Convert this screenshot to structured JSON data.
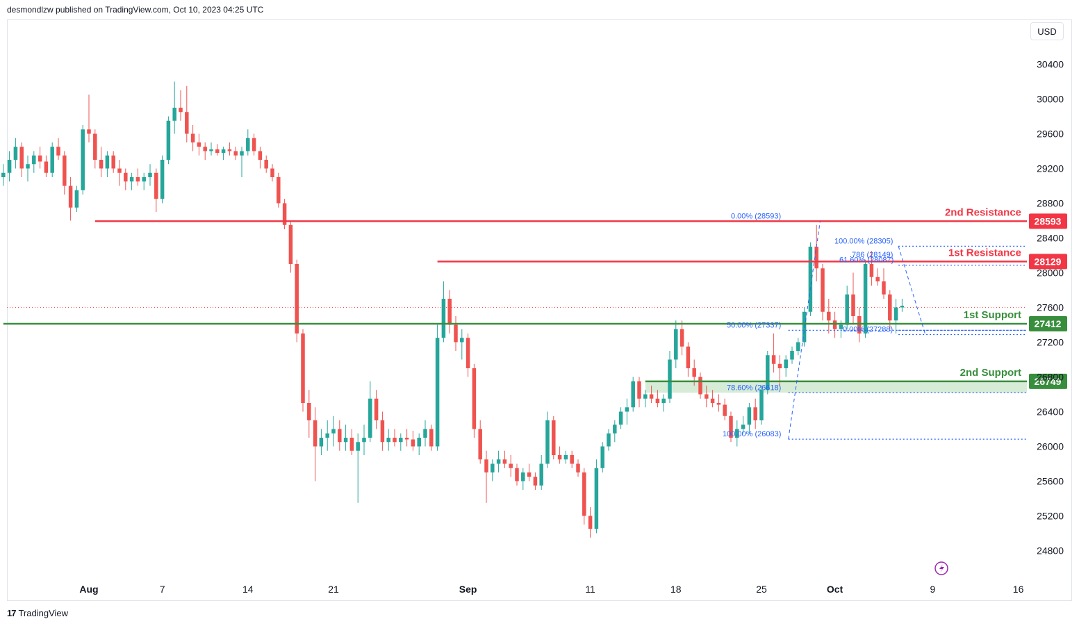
{
  "header": {
    "publisher": "desmondlzw published on TradingView.com, Oct 10, 2023 04:25 UTC"
  },
  "currency": "USD",
  "footer": {
    "brand": "TradingView"
  },
  "colors": {
    "up": "#26a69a",
    "down": "#ef5350",
    "resistance": "#f23645",
    "support": "#388e3c",
    "fib": "#2962ff"
  },
  "chart_data": {
    "type": "candlestick",
    "ylim": [
      24500,
      30900
    ],
    "y_ticks": [
      24800,
      25200,
      25600,
      26000,
      26400,
      26800,
      27200,
      27600,
      28000,
      28400,
      28800,
      29200,
      29600,
      30000,
      30400
    ],
    "x_ticks": [
      {
        "label": "Aug",
        "day": 0,
        "bold": true
      },
      {
        "label": "7",
        "day": 6
      },
      {
        "label": "14",
        "day": 13
      },
      {
        "label": "21",
        "day": 20
      },
      {
        "label": "Sep",
        "day": 31,
        "bold": true
      },
      {
        "label": "11",
        "day": 41
      },
      {
        "label": "18",
        "day": 48
      },
      {
        "label": "25",
        "day": 55
      },
      {
        "label": "Oct",
        "day": 61,
        "bold": true
      },
      {
        "label": "9",
        "day": 69
      },
      {
        "label": "16",
        "day": 76
      }
    ],
    "last_price": 27600,
    "levels": [
      {
        "name": "2nd Resistance",
        "value": 28593,
        "label": "28593",
        "kind": "resistance",
        "from_day": 0.5
      },
      {
        "name": "1st Resistance",
        "value": 28129,
        "label": "28129",
        "kind": "resistance",
        "from_day": 28.5
      },
      {
        "name": "1st Support",
        "value": 27412,
        "label": "27412",
        "kind": "support",
        "from_day": -7
      },
      {
        "name": "2nd Support",
        "value": 26749,
        "label": "26749",
        "kind": "support",
        "from_day": 45.5
      }
    ],
    "support_zone": {
      "from": 26618,
      "to": 26749,
      "from_day": 45.5
    },
    "fib_labels": [
      {
        "text": "0.00% (28593)",
        "value": 28593,
        "day": 54
      },
      {
        "text": "50.00% (27337)",
        "value": 27337,
        "day": 54
      },
      {
        "text": "78.60% (26618)",
        "value": 26618,
        "day": 54
      },
      {
        "text": "100.00% (26083)",
        "value": 26083,
        "day": 54
      },
      {
        "text": "100.00% (28305)",
        "value": 28305,
        "day": 64
      },
      {
        "text": ".786 (28149)",
        "value": 28149,
        "day": 64
      },
      {
        "text": "61.60% (28087)",
        "value": 28087,
        "day": 64
      },
      {
        "text": "0.00% (27288)",
        "value": 27288,
        "day": 64
      }
    ],
    "candles": [
      [
        -7,
        29100,
        29250,
        29000,
        29150
      ],
      [
        -6.5,
        29150,
        29400,
        29050,
        29300
      ],
      [
        -6,
        29300,
        29550,
        29200,
        29450
      ],
      [
        -5.5,
        29450,
        29500,
        29100,
        29200
      ],
      [
        -5,
        29200,
        29350,
        29050,
        29250
      ],
      [
        -4.5,
        29250,
        29400,
        29150,
        29350
      ],
      [
        -4,
        29350,
        29450,
        29200,
        29280
      ],
      [
        -3.5,
        29280,
        29350,
        29100,
        29150
      ],
      [
        -3,
        29150,
        29500,
        29100,
        29450
      ],
      [
        -2.5,
        29450,
        29550,
        29300,
        29350
      ],
      [
        -2,
        29350,
        29400,
        28900,
        29000
      ],
      [
        -1.5,
        29000,
        29100,
        28600,
        28750
      ],
      [
        -1,
        28750,
        29000,
        28700,
        28950
      ],
      [
        -0.5,
        28950,
        29700,
        28900,
        29650
      ],
      [
        0,
        29650,
        30050,
        29500,
        29600
      ],
      [
        0.5,
        29600,
        29650,
        29200,
        29300
      ],
      [
        1,
        29300,
        29450,
        29100,
        29200
      ],
      [
        1.5,
        29200,
        29400,
        29100,
        29350
      ],
      [
        2,
        29350,
        29400,
        29150,
        29200
      ],
      [
        2.5,
        29200,
        29300,
        29000,
        29150
      ],
      [
        3,
        29150,
        29200,
        28950,
        29050
      ],
      [
        3.5,
        29050,
        29150,
        28950,
        29100
      ],
      [
        4,
        29100,
        29200,
        29000,
        29050
      ],
      [
        4.5,
        29050,
        29150,
        28950,
        29100
      ],
      [
        5,
        29100,
        29250,
        29000,
        29150
      ],
      [
        5.5,
        29150,
        29200,
        28700,
        28850
      ],
      [
        6,
        28850,
        29350,
        28800,
        29300
      ],
      [
        6.5,
        29300,
        29800,
        29250,
        29750
      ],
      [
        7,
        29750,
        30200,
        29600,
        29900
      ],
      [
        7.5,
        29900,
        30100,
        29750,
        29850
      ],
      [
        8,
        29850,
        30150,
        29500,
        29600
      ],
      [
        8.5,
        29600,
        29700,
        29400,
        29500
      ],
      [
        9,
        29500,
        29600,
        29350,
        29450
      ],
      [
        9.5,
        29450,
        29500,
        29300,
        29400
      ],
      [
        10,
        29400,
        29500,
        29350,
        29420
      ],
      [
        10.5,
        29420,
        29480,
        29350,
        29380
      ],
      [
        11,
        29380,
        29450,
        29300,
        29420
      ],
      [
        11.5,
        29420,
        29500,
        29350,
        29400
      ],
      [
        12,
        29400,
        29450,
        29300,
        29350
      ],
      [
        12.5,
        29350,
        29450,
        29100,
        29400
      ],
      [
        13,
        29400,
        29650,
        29350,
        29550
      ],
      [
        13.5,
        29550,
        29600,
        29350,
        29400
      ],
      [
        14,
        29400,
        29450,
        29200,
        29300
      ],
      [
        14.5,
        29300,
        29350,
        29150,
        29200
      ],
      [
        15,
        29200,
        29250,
        29050,
        29100
      ],
      [
        15.5,
        29100,
        29150,
        28750,
        28800
      ],
      [
        16,
        28800,
        28850,
        28500,
        28550
      ],
      [
        16.5,
        28550,
        28600,
        28000,
        28100
      ],
      [
        17,
        28100,
        28150,
        27200,
        27300
      ],
      [
        17.5,
        27300,
        27350,
        26400,
        26500
      ],
      [
        18,
        26500,
        26650,
        26100,
        26300
      ],
      [
        18.5,
        26300,
        26450,
        25600,
        26000
      ],
      [
        19,
        26000,
        26200,
        25900,
        26100
      ],
      [
        19.5,
        26100,
        26300,
        25950,
        26150
      ],
      [
        20,
        26150,
        26350,
        26000,
        26200
      ],
      [
        20.5,
        26200,
        26300,
        25950,
        26050
      ],
      [
        21,
        26050,
        26250,
        25950,
        26100
      ],
      [
        21.5,
        26100,
        26200,
        25900,
        25950
      ],
      [
        22,
        25950,
        26150,
        25350,
        26050
      ],
      [
        22.5,
        26050,
        26250,
        25900,
        26100
      ],
      [
        23,
        26100,
        26750,
        26050,
        26550
      ],
      [
        23.5,
        26550,
        26650,
        26200,
        26300
      ],
      [
        24,
        26300,
        26400,
        25950,
        26050
      ],
      [
        24.5,
        26050,
        26200,
        25950,
        26100
      ],
      [
        25,
        26100,
        26200,
        26000,
        26050
      ],
      [
        25.5,
        26050,
        26150,
        25950,
        26100
      ],
      [
        26,
        26100,
        26200,
        26000,
        26080
      ],
      [
        26.5,
        26080,
        26180,
        25950,
        26000
      ],
      [
        27,
        26000,
        26150,
        25900,
        26100
      ],
      [
        27.5,
        26100,
        26300,
        26000,
        26200
      ],
      [
        28,
        26200,
        26250,
        25950,
        26000
      ],
      [
        28.5,
        26000,
        27400,
        25950,
        27250
      ],
      [
        29,
        27250,
        27900,
        27200,
        27700
      ],
      [
        29.5,
        27700,
        27800,
        27300,
        27400
      ],
      [
        30,
        27400,
        27500,
        27100,
        27200
      ],
      [
        30.5,
        27200,
        27350,
        27000,
        27250
      ],
      [
        31,
        27250,
        27300,
        26800,
        26900
      ],
      [
        31.5,
        26900,
        26950,
        26100,
        26200
      ],
      [
        32,
        26200,
        26300,
        25800,
        25850
      ],
      [
        32.5,
        25850,
        25950,
        25350,
        25700
      ],
      [
        33,
        25700,
        25850,
        25600,
        25800
      ],
      [
        33.5,
        25800,
        25950,
        25700,
        25850
      ],
      [
        34,
        25850,
        25950,
        25750,
        25800
      ],
      [
        34.5,
        25800,
        25900,
        25650,
        25750
      ],
      [
        35,
        25750,
        25800,
        25550,
        25600
      ],
      [
        35.5,
        25600,
        25750,
        25500,
        25700
      ],
      [
        36,
        25700,
        25800,
        25600,
        25650
      ],
      [
        36.5,
        25650,
        25700,
        25500,
        25550
      ],
      [
        37,
        25550,
        25900,
        25500,
        25800
      ],
      [
        37.5,
        25800,
        26400,
        25750,
        26300
      ],
      [
        38,
        26300,
        26350,
        25850,
        25900
      ],
      [
        38.5,
        25900,
        26000,
        25800,
        25850
      ],
      [
        39,
        25850,
        25950,
        25800,
        25900
      ],
      [
        39.5,
        25900,
        25950,
        25750,
        25800
      ],
      [
        40,
        25800,
        25850,
        25650,
        25700
      ],
      [
        40.5,
        25700,
        25750,
        25100,
        25200
      ],
      [
        41,
        25200,
        25300,
        24950,
        25050
      ],
      [
        41.5,
        25050,
        25850,
        25000,
        25750
      ],
      [
        42,
        25750,
        26050,
        25700,
        26000
      ],
      [
        42.5,
        26000,
        26200,
        25950,
        26150
      ],
      [
        43,
        26150,
        26300,
        26050,
        26250
      ],
      [
        43.5,
        26250,
        26450,
        26200,
        26400
      ],
      [
        44,
        26400,
        26550,
        26250,
        26450
      ],
      [
        44.5,
        26450,
        26800,
        26400,
        26750
      ],
      [
        45,
        26750,
        26800,
        26450,
        26550
      ],
      [
        45.5,
        26550,
        26650,
        26450,
        26600
      ],
      [
        46,
        26600,
        26700,
        26500,
        26550
      ],
      [
        46.5,
        26550,
        26650,
        26450,
        26500
      ],
      [
        47,
        26500,
        26600,
        26400,
        26550
      ],
      [
        47.5,
        26550,
        27100,
        26500,
        27000
      ],
      [
        48,
        27000,
        27450,
        26900,
        27350
      ],
      [
        48.5,
        27350,
        27450,
        27050,
        27150
      ],
      [
        49,
        27150,
        27200,
        26800,
        26900
      ],
      [
        49.5,
        26900,
        27000,
        26700,
        26800
      ],
      [
        50,
        26800,
        26850,
        26550,
        26600
      ],
      [
        50.5,
        26600,
        26700,
        26450,
        26550
      ],
      [
        51,
        26550,
        26650,
        26450,
        26500
      ],
      [
        51.5,
        26500,
        26600,
        26400,
        26480
      ],
      [
        52,
        26480,
        26550,
        26300,
        26350
      ],
      [
        52.5,
        26350,
        26400,
        26050,
        26100
      ],
      [
        53,
        26100,
        26300,
        26000,
        26200
      ],
      [
        53.5,
        26200,
        26350,
        26150,
        26250
      ],
      [
        54,
        26250,
        26500,
        26150,
        26450
      ],
      [
        54.5,
        26450,
        26550,
        26200,
        26300
      ],
      [
        55,
        26300,
        26700,
        26250,
        26650
      ],
      [
        55.5,
        26650,
        27100,
        26600,
        27050
      ],
      [
        56,
        27050,
        27300,
        26850,
        26950
      ],
      [
        56.5,
        26950,
        27050,
        26700,
        26900
      ],
      [
        57,
        26900,
        27050,
        26800,
        27000
      ],
      [
        57.5,
        27000,
        27150,
        26950,
        27100
      ],
      [
        58,
        27100,
        27250,
        27050,
        27200
      ],
      [
        58.5,
        27200,
        27600,
        27150,
        27550
      ],
      [
        59,
        27550,
        28350,
        27500,
        28300
      ],
      [
        59.5,
        28300,
        28550,
        27900,
        28050
      ],
      [
        60,
        28050,
        28100,
        27450,
        27550
      ],
      [
        60.5,
        27550,
        27700,
        27300,
        27450
      ],
      [
        61,
        27450,
        27550,
        27250,
        27350
      ],
      [
        61.5,
        27350,
        27450,
        27250,
        27400
      ],
      [
        62,
        27400,
        27850,
        27350,
        27750
      ],
      [
        62.5,
        27750,
        28000,
        27400,
        27500
      ],
      [
        63,
        27500,
        27600,
        27200,
        27300
      ],
      [
        63.5,
        27300,
        28150,
        27250,
        28100
      ],
      [
        64,
        28100,
        28250,
        27850,
        27950
      ],
      [
        64.5,
        27950,
        28050,
        27850,
        27900
      ],
      [
        65,
        27900,
        28050,
        27700,
        27750
      ],
      [
        65.5,
        27750,
        27800,
        27350,
        27450
      ],
      [
        66,
        27450,
        27700,
        27300,
        27600
      ],
      [
        66.5,
        27600,
        27700,
        27550,
        27620
      ]
    ]
  }
}
